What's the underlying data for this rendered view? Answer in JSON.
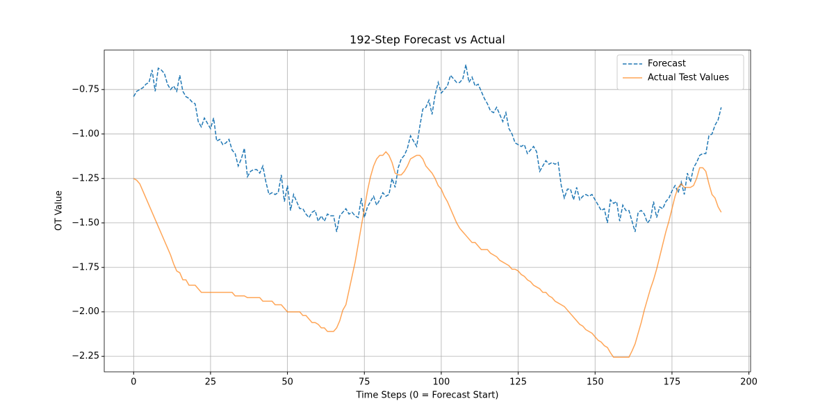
{
  "chart_data": {
    "type": "line",
    "title": "192-Step Forecast vs Actual",
    "x_label": "Time Steps (0 = Forecast Start)",
    "y_label": "OT Value",
    "x": [
      0,
      1,
      2,
      3,
      4,
      5,
      6,
      7,
      8,
      9,
      10,
      11,
      12,
      13,
      14,
      15,
      16,
      17,
      18,
      19,
      20,
      21,
      22,
      23,
      24,
      25,
      26,
      27,
      28,
      29,
      30,
      31,
      32,
      33,
      34,
      35,
      36,
      37,
      38,
      39,
      40,
      41,
      42,
      43,
      44,
      45,
      46,
      47,
      48,
      49,
      50,
      51,
      52,
      53,
      54,
      55,
      56,
      57,
      58,
      59,
      60,
      61,
      62,
      63,
      64,
      65,
      66,
      67,
      68,
      69,
      70,
      71,
      72,
      73,
      74,
      75,
      76,
      77,
      78,
      79,
      80,
      81,
      82,
      83,
      84,
      85,
      86,
      87,
      88,
      89,
      90,
      91,
      92,
      93,
      94,
      95,
      96,
      97,
      98,
      99,
      100,
      101,
      102,
      103,
      104,
      105,
      106,
      107,
      108,
      109,
      110,
      111,
      112,
      113,
      114,
      115,
      116,
      117,
      118,
      119,
      120,
      121,
      122,
      123,
      124,
      125,
      126,
      127,
      128,
      129,
      130,
      131,
      132,
      133,
      134,
      135,
      136,
      137,
      138,
      139,
      140,
      141,
      142,
      143,
      144,
      145,
      146,
      147,
      148,
      149,
      150,
      151,
      152,
      153,
      154,
      155,
      156,
      157,
      158,
      159,
      160,
      161,
      162,
      163,
      164,
      165,
      166,
      167,
      168,
      169,
      170,
      171,
      172,
      173,
      174,
      175,
      176,
      177,
      178,
      179,
      180,
      181,
      182,
      183,
      184,
      185,
      186,
      187,
      188,
      189,
      190,
      191
    ],
    "series": [
      {
        "name": "Forecast",
        "color": "#1f77b4",
        "dashed": true,
        "values": [
          -0.79,
          -0.76,
          -0.75,
          -0.74,
          -0.72,
          -0.71,
          -0.64,
          -0.76,
          -0.63,
          -0.64,
          -0.66,
          -0.72,
          -0.75,
          -0.73,
          -0.76,
          -0.67,
          -0.76,
          -0.79,
          -0.8,
          -0.82,
          -0.83,
          -0.93,
          -0.96,
          -0.91,
          -0.94,
          -0.97,
          -0.91,
          -1.04,
          -1.03,
          -1.06,
          -1.05,
          -1.03,
          -1.09,
          -1.11,
          -1.18,
          -1.14,
          -1.08,
          -1.24,
          -1.21,
          -1.2,
          -1.2,
          -1.22,
          -1.18,
          -1.27,
          -1.34,
          -1.33,
          -1.34,
          -1.33,
          -1.23,
          -1.38,
          -1.29,
          -1.43,
          -1.34,
          -1.38,
          -1.42,
          -1.42,
          -1.45,
          -1.47,
          -1.44,
          -1.43,
          -1.49,
          -1.46,
          -1.49,
          -1.45,
          -1.46,
          -1.46,
          -1.55,
          -1.46,
          -1.44,
          -1.42,
          -1.45,
          -1.44,
          -1.46,
          -1.47,
          -1.36,
          -1.47,
          -1.41,
          -1.38,
          -1.35,
          -1.4,
          -1.37,
          -1.33,
          -1.35,
          -1.34,
          -1.25,
          -1.3,
          -1.19,
          -1.14,
          -1.12,
          -1.08,
          -1.01,
          -1.04,
          -1.07,
          -0.96,
          -0.86,
          -0.85,
          -0.81,
          -0.89,
          -0.78,
          -0.71,
          -0.77,
          -0.75,
          -0.73,
          -0.67,
          -0.69,
          -0.71,
          -0.71,
          -0.69,
          -0.61,
          -0.71,
          -0.68,
          -0.73,
          -0.72,
          -0.76,
          -0.8,
          -0.83,
          -0.87,
          -0.88,
          -0.85,
          -0.89,
          -0.93,
          -0.88,
          -0.97,
          -1.0,
          -1.05,
          -1.06,
          -1.07,
          -1.06,
          -1.11,
          -1.09,
          -1.07,
          -1.1,
          -1.21,
          -1.18,
          -1.15,
          -1.17,
          -1.16,
          -1.17,
          -1.16,
          -1.29,
          -1.36,
          -1.31,
          -1.31,
          -1.37,
          -1.3,
          -1.37,
          -1.35,
          -1.34,
          -1.35,
          -1.34,
          -1.37,
          -1.4,
          -1.43,
          -1.42,
          -1.5,
          -1.37,
          -1.39,
          -1.38,
          -1.49,
          -1.4,
          -1.43,
          -1.43,
          -1.49,
          -1.55,
          -1.44,
          -1.43,
          -1.45,
          -1.5,
          -1.48,
          -1.38,
          -1.47,
          -1.41,
          -1.42,
          -1.38,
          -1.36,
          -1.32,
          -1.29,
          -1.33,
          -1.27,
          -1.34,
          -1.22,
          -1.27,
          -1.19,
          -1.16,
          -1.12,
          -1.11,
          -1.11,
          -1.01,
          -1.0,
          -0.95,
          -0.92,
          -0.85
        ]
      },
      {
        "name": "Actual Test Values",
        "color": "#ff7f0e",
        "dashed": false,
        "values": [
          -1.25,
          -1.26,
          -1.28,
          -1.32,
          -1.36,
          -1.4,
          -1.44,
          -1.48,
          -1.52,
          -1.56,
          -1.6,
          -1.64,
          -1.68,
          -1.73,
          -1.77,
          -1.78,
          -1.82,
          -1.82,
          -1.85,
          -1.85,
          -1.85,
          -1.87,
          -1.89,
          -1.89,
          -1.89,
          -1.89,
          -1.89,
          -1.89,
          -1.89,
          -1.89,
          -1.89,
          -1.89,
          -1.89,
          -1.91,
          -1.91,
          -1.91,
          -1.91,
          -1.92,
          -1.92,
          -1.92,
          -1.92,
          -1.92,
          -1.94,
          -1.94,
          -1.94,
          -1.94,
          -1.96,
          -1.96,
          -1.96,
          -1.98,
          -2.0,
          -2.0,
          -2.0,
          -2.0,
          -2.0,
          -2.02,
          -2.02,
          -2.04,
          -2.06,
          -2.06,
          -2.07,
          -2.09,
          -2.09,
          -2.11,
          -2.11,
          -2.11,
          -2.09,
          -2.05,
          -1.99,
          -1.96,
          -1.88,
          -1.8,
          -1.72,
          -1.62,
          -1.52,
          -1.42,
          -1.32,
          -1.24,
          -1.18,
          -1.14,
          -1.12,
          -1.12,
          -1.1,
          -1.12,
          -1.16,
          -1.22,
          -1.23,
          -1.23,
          -1.21,
          -1.18,
          -1.14,
          -1.13,
          -1.12,
          -1.12,
          -1.14,
          -1.18,
          -1.2,
          -1.22,
          -1.25,
          -1.29,
          -1.31,
          -1.35,
          -1.38,
          -1.42,
          -1.46,
          -1.5,
          -1.53,
          -1.55,
          -1.57,
          -1.59,
          -1.61,
          -1.61,
          -1.63,
          -1.65,
          -1.65,
          -1.65,
          -1.67,
          -1.68,
          -1.69,
          -1.71,
          -1.72,
          -1.73,
          -1.74,
          -1.76,
          -1.76,
          -1.77,
          -1.79,
          -1.8,
          -1.82,
          -1.83,
          -1.85,
          -1.86,
          -1.87,
          -1.89,
          -1.89,
          -1.91,
          -1.92,
          -1.94,
          -1.95,
          -1.96,
          -1.97,
          -1.99,
          -2.01,
          -2.03,
          -2.05,
          -2.07,
          -2.08,
          -2.1,
          -2.11,
          -2.12,
          -2.14,
          -2.16,
          -2.17,
          -2.19,
          -2.2,
          -2.23,
          -2.255,
          -2.255,
          -2.255,
          -2.255,
          -2.255,
          -2.255,
          -2.22,
          -2.18,
          -2.12,
          -2.06,
          -1.99,
          -1.93,
          -1.87,
          -1.82,
          -1.76,
          -1.69,
          -1.62,
          -1.55,
          -1.49,
          -1.42,
          -1.35,
          -1.3,
          -1.28,
          -1.3,
          -1.3,
          -1.3,
          -1.29,
          -1.25,
          -1.19,
          -1.19,
          -1.21,
          -1.28,
          -1.34,
          -1.36,
          -1.41,
          -1.44
        ]
      }
    ],
    "xlim": [
      -9.55,
      200.55
    ],
    "ylim": [
      -2.337,
      -0.528
    ],
    "xticks": [
      0,
      25,
      50,
      75,
      100,
      125,
      150,
      175,
      200
    ],
    "yticks": [
      {
        "value": -2.25,
        "label": "−2.25"
      },
      {
        "value": -2.0,
        "label": "−2.00"
      },
      {
        "value": -1.75,
        "label": "−1.75"
      },
      {
        "value": -1.5,
        "label": "−1.50"
      },
      {
        "value": -1.25,
        "label": "−1.25"
      },
      {
        "value": -1.0,
        "label": "−1.00"
      },
      {
        "value": -0.75,
        "label": "−0.75"
      }
    ],
    "grid": true,
    "legend": "upper right"
  }
}
